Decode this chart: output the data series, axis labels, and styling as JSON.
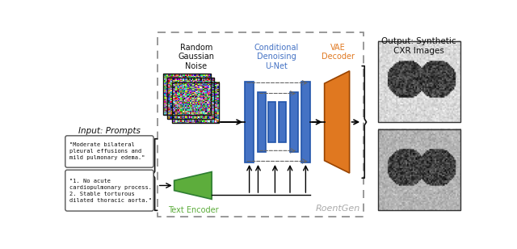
{
  "fig_width": 6.4,
  "fig_height": 3.08,
  "dpi": 100,
  "bg_color": "#ffffff",
  "title_input": "Input: Prompts",
  "title_output": "Output: Synthetic\nCXR Images",
  "label_noise": "Random\nGaussian\nNoise",
  "label_unet": "Conditional\nDenoising\nU-Net",
  "label_vae": "VAE\nDecoder",
  "label_text_enc": "Text Encoder",
  "label_roentgen": "RoentGen",
  "prompt1": "\"Moderate bilateral\npleural effusions and\nmild pulmonary edema.\"",
  "prompt2": "\"1. No acute\ncardiopulmonary process.\n2. Stable torturous\ndilated thoracic aorta.\"",
  "color_unet": "#4472C4",
  "color_vae": "#E07820",
  "color_text": "#5DAD3C",
  "color_roentgen": "#aaaaaa",
  "color_unet_label": "#4472C4",
  "color_vae_label": "#E07820",
  "color_text_label": "#5DAD3C"
}
